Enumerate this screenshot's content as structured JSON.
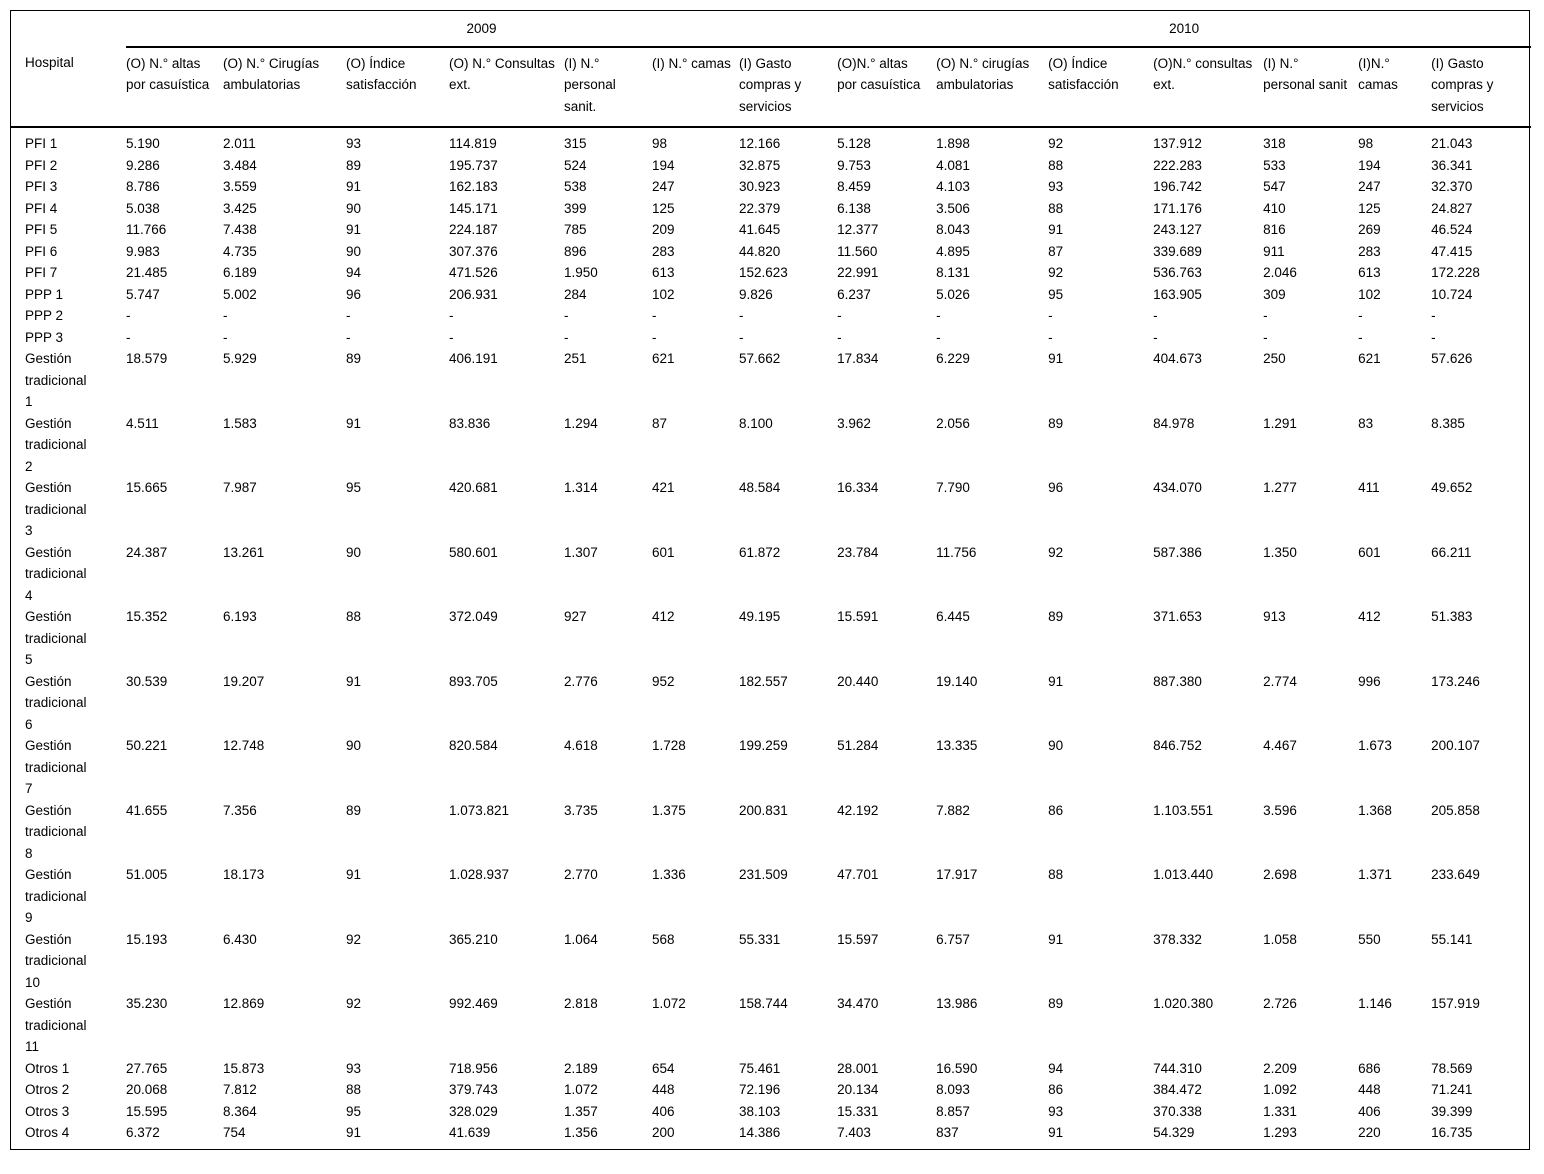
{
  "page": {
    "background_color": "#ffffff",
    "text_color": "#000000",
    "rule_color": "#000000"
  },
  "table": {
    "row_header_label": "Hospital",
    "year_groups": [
      {
        "label": "2009"
      },
      {
        "label": "2010"
      }
    ],
    "columns": [
      "(O) N.° altas por casuística",
      "(O) N.° Cirugías ambulatorias",
      "(O) Índice satisfacción",
      "(O) N.° Consultas ext.",
      "(I) N.° personal sanit.",
      "(I) N.° camas",
      "(I) Gasto compras y servicios",
      "(O)N.° altas por casuística",
      "(O) N.° cirugías ambulatorias",
      "(O) Índice satisfacción",
      "(O)N.° consultas ext.",
      "(I) N.° personal sanit",
      "(I)N.° camas",
      "(I) Gasto compras y servicios"
    ],
    "rows": [
      {
        "hospital": "PFI 1",
        "values": [
          "5.190",
          "2.011",
          "93",
          "114.819",
          "315",
          "98",
          "12.166",
          "5.128",
          "1.898",
          "92",
          "137.912",
          "318",
          "98",
          "21.043"
        ]
      },
      {
        "hospital": "PFI 2",
        "values": [
          "9.286",
          "3.484",
          "89",
          "195.737",
          "524",
          "194",
          "32.875",
          "9.753",
          "4.081",
          "88",
          "222.283",
          "533",
          "194",
          "36.341"
        ]
      },
      {
        "hospital": "PFI 3",
        "values": [
          "8.786",
          "3.559",
          "91",
          "162.183",
          "538",
          "247",
          "30.923",
          "8.459",
          "4.103",
          "93",
          "196.742",
          "547",
          "247",
          "32.370"
        ]
      },
      {
        "hospital": "PFI 4",
        "values": [
          "5.038",
          "3.425",
          "90",
          "145.171",
          "399",
          "125",
          "22.379",
          "6.138",
          "3.506",
          "88",
          "171.176",
          "410",
          "125",
          "24.827"
        ]
      },
      {
        "hospital": "PFI 5",
        "values": [
          "11.766",
          "7.438",
          "91",
          "224.187",
          "785",
          "209",
          "41.645",
          "12.377",
          "8.043",
          "91",
          "243.127",
          "816",
          "269",
          "46.524"
        ]
      },
      {
        "hospital": "PFI 6",
        "values": [
          "9.983",
          "4.735",
          "90",
          "307.376",
          "896",
          "283",
          "44.820",
          "11.560",
          "4.895",
          "87",
          "339.689",
          "911",
          "283",
          "47.415"
        ]
      },
      {
        "hospital": "PFI 7",
        "values": [
          "21.485",
          "6.189",
          "94",
          "471.526",
          "1.950",
          "613",
          "152.623",
          "22.991",
          "8.131",
          "92",
          "536.763",
          "2.046",
          "613",
          "172.228"
        ]
      },
      {
        "hospital": "PPP 1",
        "values": [
          "5.747",
          "5.002",
          "96",
          "206.931",
          "284",
          "102",
          "9.826",
          "6.237",
          "5.026",
          "95",
          "163.905",
          "309",
          "102",
          "10.724"
        ]
      },
      {
        "hospital": "PPP 2",
        "values": [
          "-",
          "-",
          "-",
          "-",
          "-",
          "-",
          "-",
          "-",
          "-",
          "-",
          "-",
          "-",
          "-",
          "-"
        ]
      },
      {
        "hospital": "PPP 3",
        "values": [
          "-",
          "-",
          "-",
          "-",
          "-",
          "-",
          "-",
          "-",
          "-",
          "-",
          "-",
          "-",
          "-",
          "-"
        ]
      },
      {
        "hospital": "Gestión tradicional 1",
        "values": [
          "18.579",
          "5.929",
          "89",
          "406.191",
          "251",
          "621",
          "57.662",
          "17.834",
          "6.229",
          "91",
          "404.673",
          "250",
          "621",
          "57.626"
        ]
      },
      {
        "hospital": "Gestión tradicional 2",
        "values": [
          "4.511",
          "1.583",
          "91",
          "83.836",
          "1.294",
          "87",
          "8.100",
          "3.962",
          "2.056",
          "89",
          "84.978",
          "1.291",
          "83",
          "8.385"
        ]
      },
      {
        "hospital": "Gestión tradicional 3",
        "values": [
          "15.665",
          "7.987",
          "95",
          "420.681",
          "1.314",
          "421",
          "48.584",
          "16.334",
          "7.790",
          "96",
          "434.070",
          "1.277",
          "411",
          "49.652"
        ]
      },
      {
        "hospital": "Gestión tradicional 4",
        "values": [
          "24.387",
          "13.261",
          "90",
          "580.601",
          "1.307",
          "601",
          "61.872",
          "23.784",
          "11.756",
          "92",
          "587.386",
          "1.350",
          "601",
          "66.211"
        ]
      },
      {
        "hospital": "Gestión tradicional 5",
        "values": [
          "15.352",
          "6.193",
          "88",
          "372.049",
          "927",
          "412",
          "49.195",
          "15.591",
          "6.445",
          "89",
          "371.653",
          "913",
          "412",
          "51.383"
        ]
      },
      {
        "hospital": "Gestión tradicional 6",
        "values": [
          "30.539",
          "19.207",
          "91",
          "893.705",
          "2.776",
          "952",
          "182.557",
          "20.440",
          "19.140",
          "91",
          "887.380",
          "2.774",
          "996",
          "173.246"
        ]
      },
      {
        "hospital": "Gestión tradicional 7",
        "values": [
          "50.221",
          "12.748",
          "90",
          "820.584",
          "4.618",
          "1.728",
          "199.259",
          "51.284",
          "13.335",
          "90",
          "846.752",
          "4.467",
          "1.673",
          "200.107"
        ]
      },
      {
        "hospital": "Gestión tradicional 8",
        "values": [
          "41.655",
          "7.356",
          "89",
          "1.073.821",
          "3.735",
          "1.375",
          "200.831",
          "42.192",
          "7.882",
          "86",
          "1.103.551",
          "3.596",
          "1.368",
          "205.858"
        ]
      },
      {
        "hospital": "Gestión tradicional 9",
        "values": [
          "51.005",
          "18.173",
          "91",
          "1.028.937",
          "2.770",
          "1.336",
          "231.509",
          "47.701",
          "17.917",
          "88",
          "1.013.440",
          "2.698",
          "1.371",
          "233.649"
        ]
      },
      {
        "hospital": "Gestión tradicional 10",
        "values": [
          "15.193",
          "6.430",
          "92",
          "365.210",
          "1.064",
          "568",
          "55.331",
          "15.597",
          "6.757",
          "91",
          "378.332",
          "1.058",
          "550",
          "55.141"
        ]
      },
      {
        "hospital": "Gestión tradicional 11",
        "values": [
          "35.230",
          "12.869",
          "92",
          "992.469",
          "2.818",
          "1.072",
          "158.744",
          "34.470",
          "13.986",
          "89",
          "1.020.380",
          "2.726",
          "1.146",
          "157.919"
        ]
      },
      {
        "hospital": "Otros 1",
        "values": [
          "27.765",
          "15.873",
          "93",
          "718.956",
          "2.189",
          "654",
          "75.461",
          "28.001",
          "16.590",
          "94",
          "744.310",
          "2.209",
          "686",
          "78.569"
        ]
      },
      {
        "hospital": "Otros 2",
        "values": [
          "20.068",
          "7.812",
          "88",
          "379.743",
          "1.072",
          "448",
          "72.196",
          "20.134",
          "8.093",
          "86",
          "384.472",
          "1.092",
          "448",
          "71.241"
        ]
      },
      {
        "hospital": "Otros 3",
        "values": [
          "15.595",
          "8.364",
          "95",
          "328.029",
          "1.357",
          "406",
          "38.103",
          "15.331",
          "8.857",
          "93",
          "370.338",
          "1.331",
          "406",
          "39.399"
        ]
      },
      {
        "hospital": "Otros 4",
        "values": [
          "6.372",
          "754",
          "91",
          "41.639",
          "1.356",
          "200",
          "14.386",
          "7.403",
          "837",
          "91",
          "54.329",
          "1.293",
          "220",
          "16.735"
        ]
      }
    ]
  }
}
